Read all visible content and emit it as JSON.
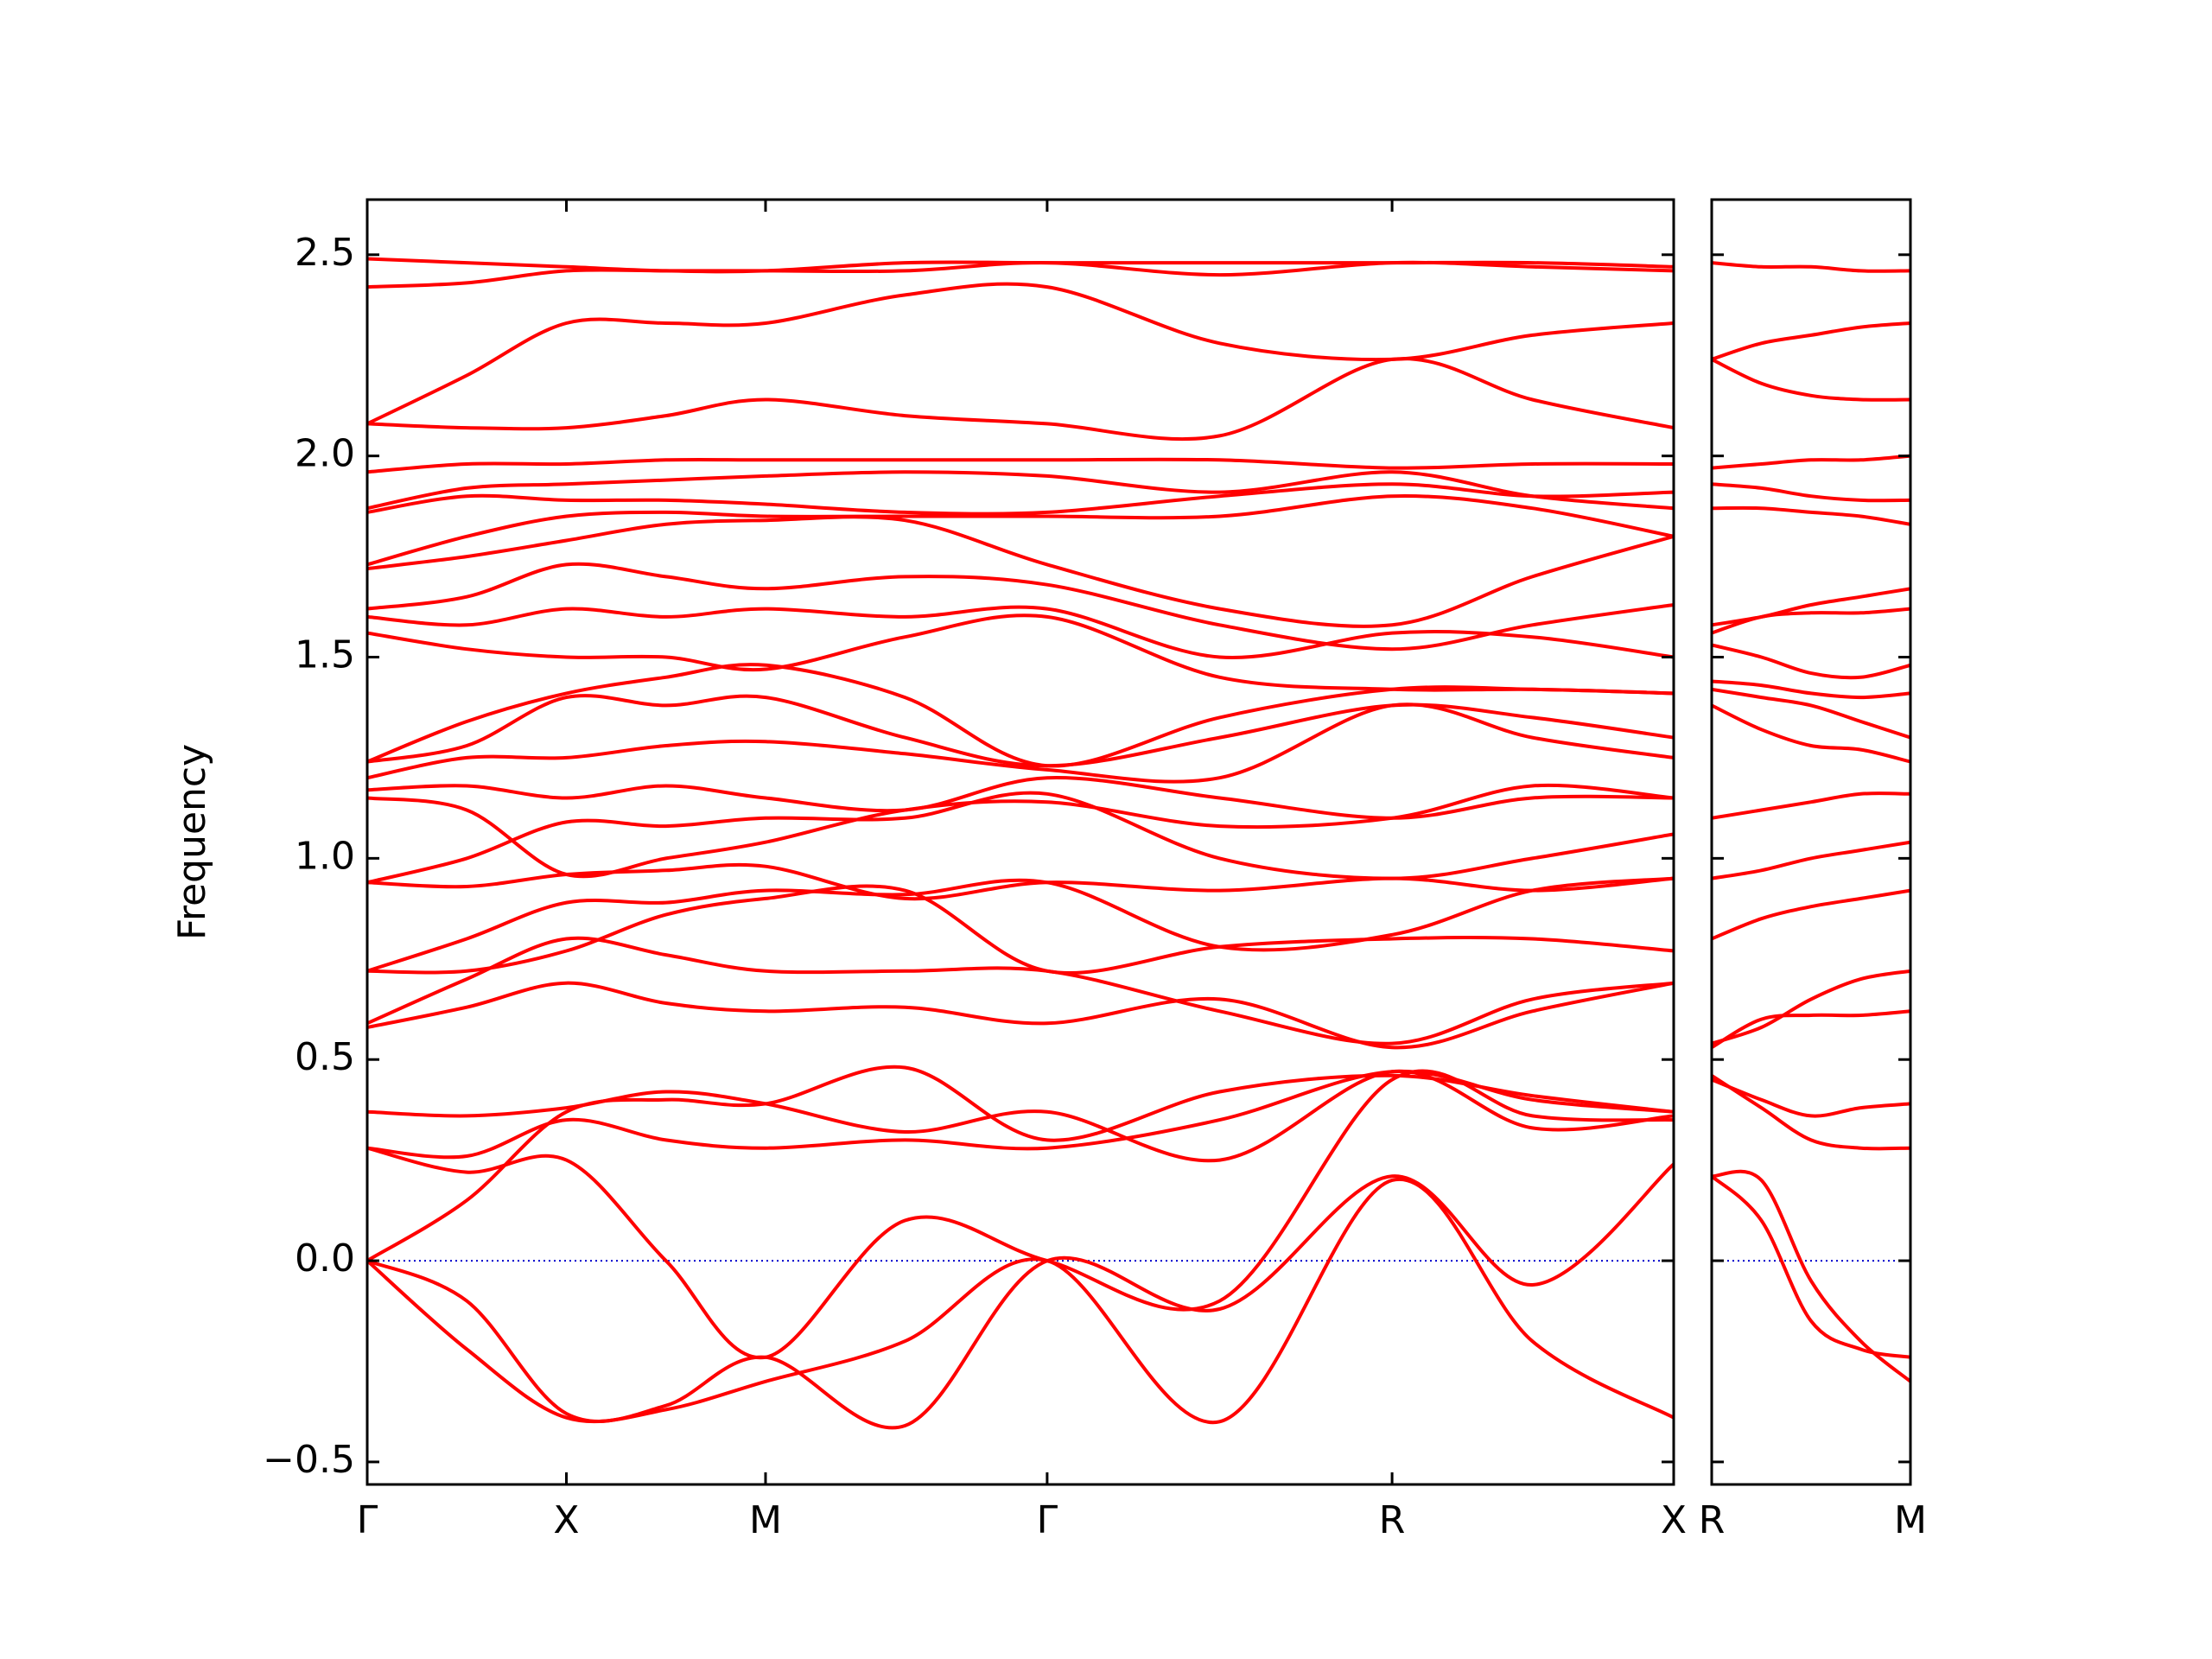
{
  "chart_data": [
    {
      "type": "line",
      "ylabel": "Frequency",
      "color": "#ff0000",
      "line_width": 4,
      "hline": {
        "value": 0,
        "color": "#0000cc",
        "style": "dotted"
      },
      "x": [
        0,
        0.5,
        1,
        1.5,
        2,
        2.7,
        3.414,
        4.28,
        5.146,
        5.85,
        6.56
      ],
      "xlim": [
        0,
        6.56
      ],
      "xticks": [
        {
          "value": 0,
          "label": "Γ"
        },
        {
          "value": 1,
          "label": "X"
        },
        {
          "value": 2,
          "label": "M"
        },
        {
          "value": 3.414,
          "label": "Γ"
        },
        {
          "value": 5.146,
          "label": "R"
        },
        {
          "value": 6.56,
          "label": "X"
        }
      ],
      "ylim": [
        -0.556,
        2.637
      ],
      "yticks": [
        {
          "value": -0.5,
          "label": "−0.5"
        },
        {
          "value": 0,
          "label": "0.0"
        },
        0.5,
        {
          "value": 1,
          "label": "1.0"
        },
        1.5,
        {
          "value": 2,
          "label": "2.0"
        },
        2.5
      ],
      "ytick_labels": true,
      "series": [
        {
          "values": [
            0,
            -0.22,
            -0.39,
            -0.37,
            -0.3,
            -0.2,
            0,
            -0.4,
            0.2,
            -0.2,
            -0.39
          ]
        },
        {
          "values": [
            0,
            -0.1,
            -0.38,
            -0.36,
            -0.24,
            -0.41,
            0,
            -0.12,
            0.21,
            -0.06,
            0.24
          ]
        },
        {
          "values": [
            0.28,
            0.22,
            0.25,
            0.0,
            -0.24,
            0.1,
            0,
            -0.1,
            0.45,
            0.36,
            0.35
          ]
        },
        {
          "values": [
            0.28,
            0.26,
            0.35,
            0.3,
            0.28,
            0.3,
            0.28,
            0.35,
            0.47,
            0.4,
            0.37
          ]
        },
        {
          "values": [
            0,
            0.15,
            0.37,
            0.4,
            0.39,
            0.48,
            0.3,
            0.42,
            0.46,
            0.41,
            0.37
          ]
        },
        {
          "values": [
            0.37,
            0.36,
            0.38,
            0.42,
            0.39,
            0.32,
            0.37,
            0.25,
            0.47,
            0.33,
            0.36
          ]
        },
        {
          "values": [
            0.58,
            0.63,
            0.69,
            0.64,
            0.62,
            0.63,
            0.59,
            0.65,
            0.53,
            0.62,
            0.69
          ]
        },
        {
          "values": [
            0.59,
            0.7,
            0.8,
            0.76,
            0.72,
            0.72,
            0.72,
            0.62,
            0.54,
            0.65,
            0.69
          ]
        },
        {
          "values": [
            0.72,
            0.72,
            0.77,
            0.86,
            0.9,
            0.92,
            0.72,
            0.78,
            0.8,
            0.8,
            0.77
          ]
        },
        {
          "values": [
            0.72,
            0.8,
            0.89,
            0.89,
            0.92,
            0.91,
            0.94,
            0.78,
            0.81,
            0.92,
            0.95
          ]
        },
        {
          "values": [
            0.94,
            0.93,
            0.96,
            0.97,
            0.98,
            0.9,
            0.94,
            0.92,
            0.95,
            0.92,
            0.95
          ]
        },
        {
          "values": [
            0.94,
            1.0,
            1.09,
            1.08,
            1.1,
            1.1,
            1.16,
            1.0,
            0.95,
            1.0,
            1.06
          ]
        },
        {
          "values": [
            1.15,
            1.12,
            0.96,
            1.0,
            1.04,
            1.12,
            1.14,
            1.08,
            1.1,
            1.18,
            1.15
          ]
        },
        {
          "values": [
            1.17,
            1.18,
            1.15,
            1.18,
            1.15,
            1.12,
            1.2,
            1.15,
            1.1,
            1.15,
            1.15
          ]
        },
        {
          "values": [
            1.2,
            1.25,
            1.25,
            1.28,
            1.29,
            1.26,
            1.22,
            1.2,
            1.38,
            1.3,
            1.25
          ]
        },
        {
          "values": [
            1.24,
            1.28,
            1.4,
            1.38,
            1.4,
            1.3,
            1.23,
            1.3,
            1.38,
            1.35,
            1.3
          ]
        },
        {
          "values": [
            1.24,
            1.34,
            1.41,
            1.45,
            1.48,
            1.4,
            1.23,
            1.35,
            1.42,
            1.42,
            1.41
          ]
        },
        {
          "values": [
            1.56,
            1.52,
            1.5,
            1.5,
            1.47,
            1.55,
            1.6,
            1.45,
            1.42,
            1.42,
            1.41
          ]
        },
        {
          "values": [
            1.6,
            1.58,
            1.62,
            1.6,
            1.62,
            1.6,
            1.62,
            1.5,
            1.56,
            1.55,
            1.5
          ]
        },
        {
          "values": [
            1.62,
            1.65,
            1.73,
            1.7,
            1.67,
            1.7,
            1.68,
            1.58,
            1.52,
            1.58,
            1.63
          ]
        },
        {
          "values": [
            1.72,
            1.75,
            1.79,
            1.83,
            1.84,
            1.84,
            1.73,
            1.62,
            1.58,
            1.7,
            1.8
          ]
        },
        {
          "values": [
            1.73,
            1.8,
            1.85,
            1.86,
            1.85,
            1.85,
            1.85,
            1.85,
            1.9,
            1.87,
            1.8
          ]
        },
        {
          "values": [
            1.86,
            1.9,
            1.89,
            1.89,
            1.88,
            1.86,
            1.86,
            1.9,
            1.93,
            1.9,
            1.91
          ]
        },
        {
          "values": [
            1.87,
            1.92,
            1.93,
            1.94,
            1.95,
            1.96,
            1.95,
            1.91,
            1.96,
            1.9,
            1.87
          ]
        },
        {
          "values": [
            1.96,
            1.98,
            1.98,
            1.99,
            1.99,
            1.99,
            1.99,
            1.99,
            1.97,
            1.98,
            1.98
          ]
        },
        {
          "values": [
            2.08,
            2.07,
            2.07,
            2.1,
            2.14,
            2.1,
            2.08,
            2.05,
            2.24,
            2.14,
            2.07
          ]
        },
        {
          "values": [
            2.08,
            2.2,
            2.33,
            2.33,
            2.33,
            2.4,
            2.42,
            2.28,
            2.24,
            2.3,
            2.33
          ]
        },
        {
          "values": [
            2.42,
            2.43,
            2.46,
            2.46,
            2.46,
            2.46,
            2.48,
            2.45,
            2.48,
            2.47,
            2.46
          ]
        },
        {
          "values": [
            2.49,
            2.48,
            2.47,
            2.46,
            2.46,
            2.48,
            2.48,
            2.48,
            2.48,
            2.48,
            2.47
          ]
        }
      ]
    },
    {
      "type": "line",
      "color": "#ff0000",
      "line_width": 4,
      "hline": {
        "value": 0,
        "color": "#0000cc",
        "style": "dotted"
      },
      "x": [
        0,
        0.25,
        0.5,
        0.75,
        1
      ],
      "xlim": [
        0,
        1
      ],
      "xticks": [
        {
          "value": 0,
          "label": "R"
        },
        {
          "value": 1,
          "label": "M"
        }
      ],
      "ylim": [
        -0.556,
        2.637
      ],
      "yticks": [
        -0.5,
        0,
        0.5,
        1,
        1.5,
        2,
        2.5
      ],
      "ytick_labels": false,
      "series": [
        {
          "values": [
            0.21,
            0.2,
            -0.05,
            -0.2,
            -0.3
          ]
        },
        {
          "values": [
            0.21,
            0.1,
            -0.15,
            -0.22,
            -0.24
          ]
        },
        {
          "values": [
            0.46,
            0.38,
            0.3,
            0.28,
            0.28
          ]
        },
        {
          "values": [
            0.45,
            0.4,
            0.36,
            0.38,
            0.39
          ]
        },
        {
          "values": [
            0.53,
            0.6,
            0.61,
            0.61,
            0.62
          ]
        },
        {
          "values": [
            0.54,
            0.58,
            0.65,
            0.7,
            0.72
          ]
        },
        {
          "values": [
            0.8,
            0.85,
            0.88,
            0.9,
            0.92
          ]
        },
        {
          "values": [
            0.95,
            0.97,
            1.0,
            1.02,
            1.04
          ]
        },
        {
          "values": [
            1.1,
            1.12,
            1.14,
            1.16,
            1.16
          ]
        },
        {
          "values": [
            1.38,
            1.32,
            1.28,
            1.27,
            1.24
          ]
        },
        {
          "values": [
            1.42,
            1.4,
            1.38,
            1.34,
            1.3
          ]
        },
        {
          "values": [
            1.44,
            1.43,
            1.41,
            1.4,
            1.41
          ]
        },
        {
          "values": [
            1.53,
            1.5,
            1.46,
            1.45,
            1.48
          ]
        },
        {
          "values": [
            1.56,
            1.6,
            1.61,
            1.61,
            1.62
          ]
        },
        {
          "values": [
            1.58,
            1.6,
            1.63,
            1.65,
            1.67
          ]
        },
        {
          "values": [
            1.87,
            1.87,
            1.86,
            1.85,
            1.83
          ]
        },
        {
          "values": [
            1.93,
            1.92,
            1.9,
            1.89,
            1.89
          ]
        },
        {
          "values": [
            1.97,
            1.98,
            1.99,
            1.99,
            2.0
          ]
        },
        {
          "values": [
            2.24,
            2.28,
            2.3,
            2.32,
            2.33
          ]
        },
        {
          "values": [
            2.24,
            2.18,
            2.15,
            2.14,
            2.14
          ]
        },
        {
          "values": [
            2.48,
            2.47,
            2.47,
            2.46,
            2.46
          ]
        }
      ]
    }
  ]
}
